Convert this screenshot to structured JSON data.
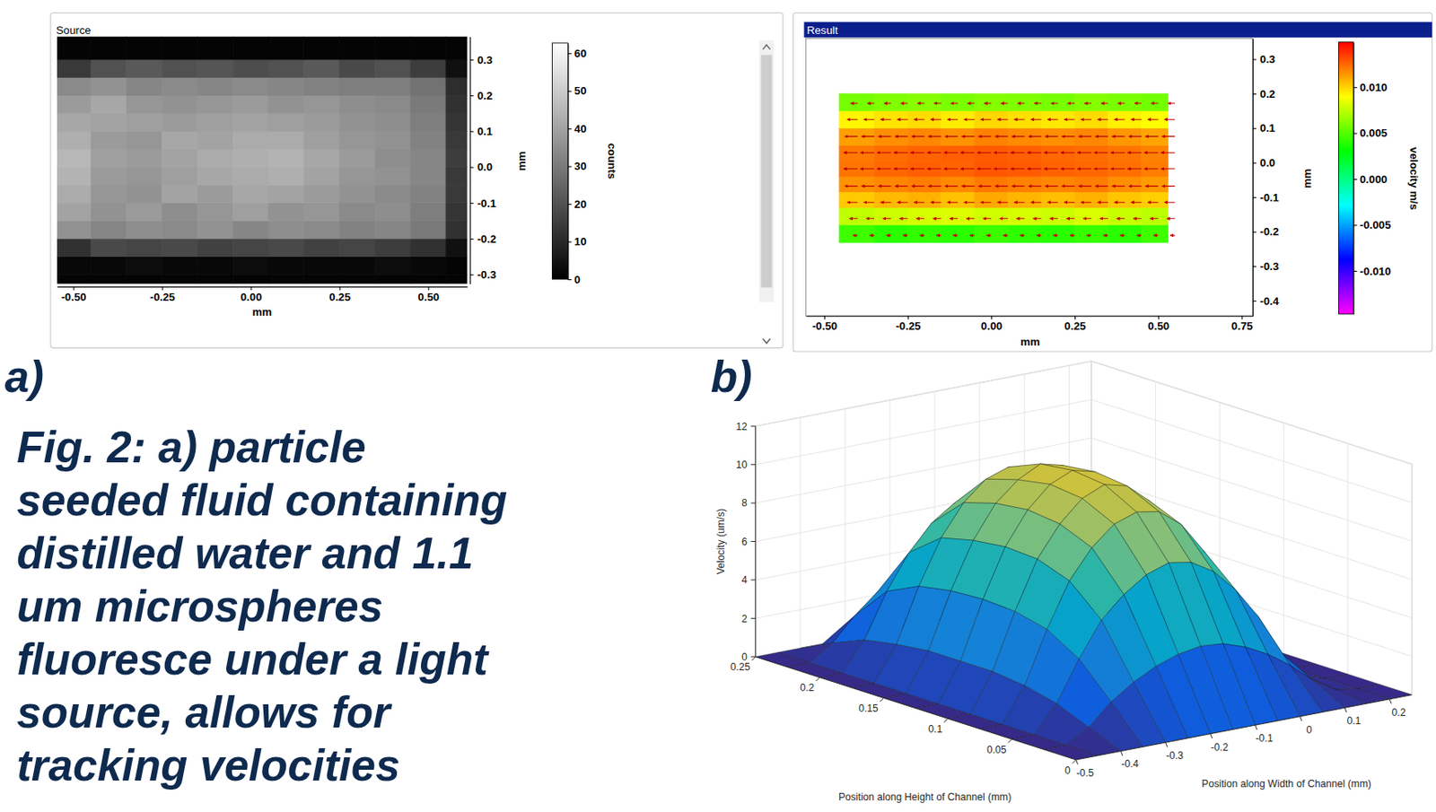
{
  "chart_data": [
    {
      "type": "heatmap",
      "panel_label": "a)",
      "window_title": "Source",
      "xlabel": "mm",
      "ylabel": "mm",
      "xlim": [
        -0.546,
        0.61
      ],
      "ylim": [
        -0.326,
        0.364
      ],
      "xticks": [
        {
          "value": -0.5,
          "label": "-0.50"
        },
        -0.25,
        {
          "value": 0,
          "label": "0.00"
        },
        0.25,
        {
          "value": 0.5,
          "label": "0.50"
        }
      ],
      "yticks": [
        0.3,
        0.2,
        0.1,
        {
          "value": 0,
          "label": "0.0"
        },
        -0.1,
        -0.2,
        -0.3
      ],
      "x_edges": [
        -0.546,
        -0.45,
        -0.35,
        -0.25,
        -0.15,
        -0.05,
        0.05,
        0.15,
        0.25,
        0.35,
        0.45,
        0.55,
        0.61
      ],
      "y_edges": [
        -0.326,
        -0.3,
        -0.25,
        -0.2,
        -0.15,
        -0.1,
        -0.05,
        0,
        0.05,
        0.1,
        0.15,
        0.2,
        0.25,
        0.3,
        0.364
      ],
      "cells": [
        [
          1,
          1,
          1,
          1,
          1,
          1,
          1,
          1,
          1,
          1,
          1,
          1
        ],
        [
          2,
          2,
          3,
          2,
          2,
          3,
          2,
          2,
          2,
          3,
          2,
          1
        ],
        [
          12,
          18,
          17,
          18,
          16,
          17,
          18,
          16,
          17,
          15,
          12,
          4
        ],
        [
          36,
          33,
          35,
          34,
          36,
          33,
          35,
          34,
          32,
          33,
          30,
          12
        ],
        [
          40,
          36,
          38,
          35,
          37,
          39,
          36,
          37,
          34,
          35,
          31,
          13
        ],
        [
          42,
          37,
          36,
          40,
          38,
          41,
          40,
          38,
          36,
          34,
          32,
          14
        ],
        [
          44,
          38,
          37,
          39,
          41,
          42,
          43,
          40,
          37,
          36,
          33,
          14
        ],
        [
          45,
          39,
          38,
          40,
          42,
          43,
          44,
          41,
          38,
          35,
          33,
          15
        ],
        [
          43,
          38,
          37,
          41,
          40,
          42,
          42,
          39,
          37,
          36,
          32,
          14
        ],
        [
          41,
          40,
          39,
          38,
          39,
          40,
          39,
          38,
          36,
          35,
          31,
          13
        ],
        [
          38,
          41,
          37,
          36,
          37,
          38,
          36,
          37,
          35,
          34,
          30,
          12
        ],
        [
          34,
          36,
          33,
          34,
          33,
          34,
          33,
          32,
          31,
          31,
          28,
          11
        ],
        [
          14,
          20,
          22,
          20,
          21,
          19,
          20,
          22,
          18,
          20,
          15,
          4
        ],
        [
          1,
          1,
          1,
          1,
          1,
          1,
          1,
          1,
          1,
          1,
          1,
          1
        ]
      ],
      "colorbar_label": "counts",
      "colorbar_lim": [
        0,
        62.7
      ],
      "colorbar_ticks": [
        60,
        50,
        40,
        30,
        20,
        10,
        0
      ]
    },
    {
      "type": "quiver",
      "panel_label": "b)",
      "window_title": "Result",
      "xlabel": "mm",
      "ylabel": "mm",
      "xlim": [
        -0.555,
        0.783
      ],
      "ylim": [
        -0.444,
        0.36
      ],
      "xticks": [
        {
          "value": -0.5,
          "label": "-0.50"
        },
        -0.25,
        {
          "value": 0,
          "label": "0.00"
        },
        0.25,
        {
          "value": 0.5,
          "label": "0.50"
        },
        0.75
      ],
      "yticks": [
        0.3,
        0.2,
        0.1,
        {
          "value": 0,
          "label": "0.0"
        },
        -0.1,
        -0.2,
        -0.3,
        -0.4
      ],
      "x_edges": [
        -0.455,
        -0.35,
        -0.25,
        -0.15,
        -0.05,
        0.05,
        0.15,
        0.25,
        0.35,
        0.45,
        0.53
      ],
      "y_edges": [
        -0.232,
        -0.18,
        -0.13,
        -0.085,
        -0.04,
        0.005,
        0.05,
        0.1,
        0.15,
        0.2
      ],
      "cells": [
        [
          0.0045,
          0.004,
          0.0042,
          0.004,
          0.0044,
          0.0041,
          0.004,
          0.0043,
          0.004,
          0.0045
        ],
        [
          0.0075,
          0.0078,
          0.008,
          0.0082,
          0.0079,
          0.008,
          0.0078,
          0.0081,
          0.0077,
          0.0074
        ],
        [
          0.0102,
          0.0106,
          0.0108,
          0.0104,
          0.011,
          0.0107,
          0.0105,
          0.0108,
          0.0103,
          0.0101
        ],
        [
          0.0115,
          0.0118,
          0.012,
          0.0117,
          0.0121,
          0.0119,
          0.0118,
          0.012,
          0.0116,
          0.0113
        ],
        [
          0.0122,
          0.0125,
          0.0127,
          0.0126,
          0.0129,
          0.0128,
          0.0126,
          0.0125,
          0.0123,
          0.012
        ],
        [
          0.0121,
          0.0124,
          0.0126,
          0.0127,
          0.0128,
          0.0127,
          0.0125,
          0.0124,
          0.0122,
          0.0119
        ],
        [
          0.0112,
          0.0116,
          0.0118,
          0.0115,
          0.0119,
          0.0117,
          0.0116,
          0.0118,
          0.0114,
          0.0111
        ],
        [
          0.0092,
          0.0096,
          0.0098,
          0.0094,
          0.0099,
          0.0097,
          0.0095,
          0.0098,
          0.0093,
          0.009
        ],
        [
          0.0058,
          0.006,
          0.0062,
          0.0059,
          0.0061,
          0.006,
          0.0058,
          0.0061,
          0.0059,
          0.0057
        ]
      ],
      "vectors": {
        "x": [
          -0.4,
          -0.35,
          -0.3,
          -0.25,
          -0.2,
          -0.15,
          -0.1,
          -0.05,
          0,
          0.05,
          0.1,
          0.15,
          0.2,
          0.25,
          0.3,
          0.35,
          0.4,
          0.45,
          0.5,
          0.55
        ],
        "y": [
          -0.211,
          -0.162,
          -0.115,
          -0.068,
          -0.018,
          0.029,
          0.076,
          0.125,
          0.172
        ],
        "u": [
          [
            -0.004,
            -0.004,
            -0.004,
            -0.004,
            -0.004,
            -0.004,
            -0.004,
            -0.004,
            -0.004,
            -0.004,
            -0.004,
            -0.004,
            -0.004,
            -0.004,
            -0.004,
            -0.004,
            -0.004,
            -0.004,
            -0.004,
            -0.004
          ],
          [
            -0.007,
            -0.007,
            -0.007,
            -0.007,
            -0.007,
            -0.007,
            -0.007,
            -0.007,
            -0.007,
            -0.007,
            -0.007,
            -0.007,
            -0.007,
            -0.007,
            -0.007,
            -0.007,
            -0.007,
            -0.007,
            -0.007,
            -0.007
          ],
          [
            -0.009,
            -0.009,
            -0.009,
            -0.009,
            -0.009,
            -0.009,
            -0.009,
            -0.009,
            -0.009,
            -0.009,
            -0.009,
            -0.009,
            -0.009,
            -0.009,
            -0.009,
            -0.009,
            -0.009,
            -0.009,
            -0.009,
            -0.009
          ],
          [
            -0.011,
            -0.011,
            -0.011,
            -0.011,
            -0.011,
            -0.011,
            -0.011,
            -0.011,
            -0.011,
            -0.011,
            -0.011,
            -0.011,
            -0.011,
            -0.011,
            -0.011,
            -0.011,
            -0.011,
            -0.011,
            -0.011,
            -0.011
          ],
          [
            -0.012,
            -0.012,
            -0.012,
            -0.012,
            -0.012,
            -0.012,
            -0.012,
            -0.012,
            -0.012,
            -0.012,
            -0.012,
            -0.012,
            -0.012,
            -0.012,
            -0.012,
            -0.012,
            -0.012,
            -0.012,
            -0.012,
            -0.012
          ],
          [
            -0.012,
            -0.012,
            -0.012,
            -0.012,
            -0.012,
            -0.012,
            -0.012,
            -0.012,
            -0.012,
            -0.012,
            -0.012,
            -0.012,
            -0.012,
            -0.012,
            -0.012,
            -0.012,
            -0.012,
            -0.012,
            -0.012,
            -0.012
          ],
          [
            -0.011,
            -0.011,
            -0.011,
            -0.011,
            -0.011,
            -0.011,
            -0.011,
            -0.011,
            -0.011,
            -0.011,
            -0.011,
            -0.011,
            -0.011,
            -0.011,
            -0.011,
            -0.011,
            -0.011,
            -0.011,
            -0.011,
            -0.011
          ],
          [
            -0.009,
            -0.009,
            -0.009,
            -0.009,
            -0.009,
            -0.009,
            -0.009,
            -0.009,
            -0.009,
            -0.009,
            -0.009,
            -0.009,
            -0.009,
            -0.009,
            -0.009,
            -0.009,
            -0.009,
            -0.009,
            -0.009,
            -0.009
          ],
          [
            -0.006,
            -0.006,
            -0.006,
            -0.006,
            -0.006,
            -0.006,
            -0.006,
            -0.006,
            -0.006,
            -0.006,
            -0.006,
            -0.006,
            -0.006,
            -0.006,
            -0.006,
            -0.006,
            -0.006,
            -0.006,
            -0.006,
            -0.006
          ]
        ]
      },
      "color": "#c00000",
      "colorbar_label": "velocity m/s",
      "colorbar_lim": [
        -0.0147,
        0.0149
      ],
      "colorbar_ticks": [
        {
          "value": 0.01,
          "label": "0.010"
        },
        {
          "value": 0.005,
          "label": "0.005"
        },
        {
          "value": 0,
          "label": "0.000"
        },
        {
          "value": -0.005,
          "label": "-0.005"
        },
        {
          "value": -0.01,
          "label": "-0.010"
        }
      ]
    },
    {
      "type": "surface",
      "xlabel": "Position along Width of Channel (mm)",
      "ylabel": "Position along Height of Channel (mm)",
      "zlabel": "Velocity (um/s)",
      "xlim": [
        -0.5,
        0.25
      ],
      "ylim": [
        0,
        0.25
      ],
      "zlim": [
        0,
        12
      ],
      "xticks": [
        -0.5,
        -0.4,
        -0.3,
        -0.2,
        -0.1,
        0,
        0.1,
        0.2
      ],
      "yticks": [
        0,
        0.05,
        0.1,
        0.15,
        0.2,
        0.25
      ],
      "zticks": [
        0,
        2,
        4,
        6,
        8,
        10,
        12
      ],
      "grid": true,
      "x": [
        -0.5,
        -0.45,
        -0.4,
        -0.35,
        -0.3,
        -0.25,
        -0.2,
        -0.15,
        -0.1,
        -0.05,
        0,
        0.05,
        0.1,
        0.15,
        0.2,
        0.25
      ],
      "y": [
        0,
        0.025,
        0.05,
        0.075,
        0.1,
        0.125,
        0.15,
        0.175,
        0.2,
        0.225,
        0.25
      ],
      "z": [
        [
          0,
          0,
          0,
          0,
          0,
          0,
          0,
          0,
          0,
          0,
          0,
          0,
          0,
          0,
          0,
          0
        ],
        [
          0,
          0,
          0.7,
          1.8,
          2.6,
          3.2,
          3.6,
          3.8,
          3.7,
          3.3,
          2.7,
          1.9,
          0.9,
          0.2,
          0,
          0
        ],
        [
          0,
          0,
          1.4,
          3.5,
          5.3,
          6.4,
          7.2,
          7.6,
          7.4,
          6.7,
          5.5,
          3.9,
          1.8,
          0.4,
          0,
          0
        ],
        [
          0,
          0,
          1.8,
          4.5,
          6.8,
          8.3,
          9.3,
          9.7,
          9.5,
          8.6,
          7.0,
          5.0,
          2.3,
          0.5,
          0,
          0
        ],
        [
          0,
          0,
          2.0,
          4.9,
          7.4,
          9.0,
          10.1,
          10.6,
          10.3,
          9.3,
          7.6,
          5.4,
          2.5,
          0.5,
          0,
          0
        ],
        [
          0,
          0,
          2.0,
          5.0,
          7.5,
          9.2,
          10.3,
          10.8,
          10.5,
          9.5,
          7.8,
          5.5,
          2.5,
          0.5,
          0,
          0
        ],
        [
          0,
          0,
          2.0,
          4.9,
          7.3,
          9.0,
          10.0,
          10.6,
          10.3,
          9.3,
          7.7,
          5.4,
          2.4,
          0.5,
          0,
          0
        ],
        [
          0,
          0,
          1.8,
          4.6,
          6.9,
          8.5,
          9.5,
          9.9,
          9.7,
          8.7,
          7.2,
          5.1,
          2.3,
          0.5,
          0,
          0
        ],
        [
          0,
          0,
          1.5,
          3.8,
          5.6,
          6.9,
          7.7,
          8.1,
          7.9,
          7.1,
          5.9,
          4.1,
          1.9,
          0.4,
          0,
          0
        ],
        [
          0,
          0,
          0.8,
          2.0,
          3.0,
          3.7,
          4.1,
          4.3,
          4.2,
          3.8,
          3.1,
          2.2,
          1.0,
          0.2,
          0,
          0
        ],
        [
          0,
          0,
          0,
          0,
          0,
          0,
          0,
          0,
          0,
          0,
          0,
          0,
          0,
          0,
          0,
          0
        ]
      ]
    }
  ],
  "caption": [
    "Fig. 2: a) particle",
    "seeded fluid containing",
    "distilled water and 1.1",
    "um microspheres",
    "fluoresce under a light",
    "source, allows for",
    "tracking velocities"
  ]
}
